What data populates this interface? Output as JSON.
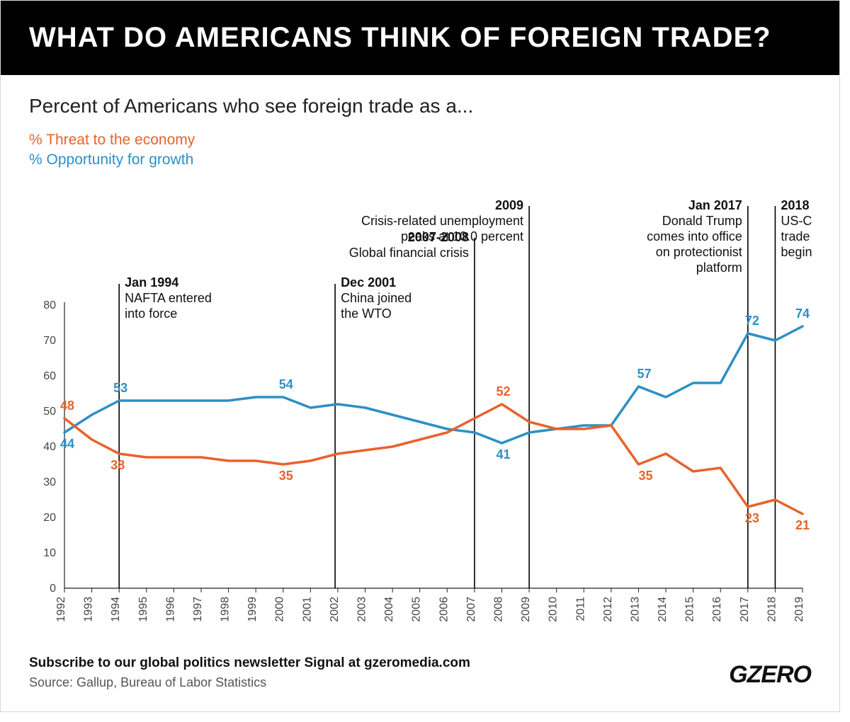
{
  "title": "WHAT DO AMERICANS THINK OF FOREIGN TRADE?",
  "subtitle": "Percent of Americans who see foreign trade as a...",
  "legend": {
    "threat": "% Threat to the economy",
    "opportunity": "% Opportunity for growth"
  },
  "footer": {
    "subscribe": "Subscribe to our global politics newsletter Signal at gzeromedia.com",
    "source": "Source: Gallup, Bureau of Labor Statistics",
    "logo": "GZERO"
  },
  "chart": {
    "type": "line",
    "background_color": "#ffffff",
    "grid_color": "#ffffff",
    "axis_color": "#222222",
    "axis_width": 1.2,
    "label_font_size": 16,
    "data_label_font_size": 18,
    "y": {
      "min": 0,
      "max": 80,
      "step": 10
    },
    "x": {
      "years": [
        1992,
        1993,
        1994,
        1995,
        1996,
        1997,
        1998,
        1999,
        2000,
        2001,
        2002,
        2003,
        2004,
        2005,
        2006,
        2007,
        2008,
        2009,
        2010,
        2011,
        2012,
        2013,
        2014,
        2015,
        2016,
        2017,
        2018,
        2019
      ]
    },
    "series": {
      "threat": {
        "color": "#e8622a",
        "line_width": 3.5,
        "values": [
          48,
          42,
          38,
          37,
          37,
          37,
          36,
          36,
          35,
          36,
          38,
          39,
          40,
          42,
          44,
          48,
          52,
          47,
          45,
          45,
          46,
          35,
          38,
          33,
          34,
          23,
          25,
          21
        ],
        "labels": [
          {
            "year": 1992,
            "val": 48,
            "dx": -6,
            "dy": -12
          },
          {
            "year": 1994,
            "val": 38,
            "dx": -12,
            "dy": 22
          },
          {
            "year": 2000,
            "val": 35,
            "dx": -6,
            "dy": 22
          },
          {
            "year": 2008,
            "val": 52,
            "dx": -8,
            "dy": -12
          },
          {
            "year": 2013,
            "val": 35,
            "dx": 0,
            "dy": 22
          },
          {
            "year": 2017,
            "val": 23,
            "dx": -4,
            "dy": 22
          },
          {
            "year": 2019,
            "val": 21,
            "dx": -10,
            "dy": 22
          }
        ]
      },
      "opportunity": {
        "color": "#2d8fc5",
        "line_width": 3.5,
        "values": [
          44,
          49,
          53,
          53,
          53,
          53,
          53,
          54,
          54,
          51,
          52,
          51,
          49,
          47,
          45,
          44,
          41,
          44,
          45,
          46,
          46,
          57,
          54,
          58,
          58,
          72,
          70,
          74
        ],
        "labels": [
          {
            "year": 1992,
            "val": 44,
            "dx": -6,
            "dy": 22
          },
          {
            "year": 1994,
            "val": 53,
            "dx": -8,
            "dy": -12
          },
          {
            "year": 2000,
            "val": 54,
            "dx": -6,
            "dy": -12
          },
          {
            "year": 2008,
            "val": 41,
            "dx": -8,
            "dy": 22
          },
          {
            "year": 2013,
            "val": 57,
            "dx": -2,
            "dy": -12
          },
          {
            "year": 2017,
            "val": 72,
            "dx": -4,
            "dy": -12
          },
          {
            "year": 2019,
            "val": 74,
            "dx": -10,
            "dy": -12
          }
        ]
      }
    },
    "events": [
      {
        "year": 1994,
        "title": "Jan 1994",
        "text": "NAFTA entered\ninto force",
        "col": 0,
        "align": "right"
      },
      {
        "year": 2001.9,
        "title": "Dec 2001",
        "text": "China joined\nthe WTO",
        "col": 1,
        "align": "right"
      },
      {
        "year": 2007,
        "title": "2007-2008",
        "text": "Global financial crisis",
        "col": 2,
        "align": "left"
      },
      {
        "year": 2009,
        "title": "2009",
        "text": "Crisis-related unemployment\npeaks at 10.0 percent",
        "col": 3,
        "align": "left"
      },
      {
        "year": 2017,
        "title": "Jan 2017",
        "text": "Donald Trump\ncomes into office\non protectionist\nplatform",
        "col": 4,
        "align": "left"
      },
      {
        "year": 2018,
        "title": "2018",
        "text": "US-China\ntrade war\nbegins",
        "col": 5,
        "align": "right"
      }
    ],
    "event_line_color": "#000000",
    "event_line_width": 1.6
  }
}
